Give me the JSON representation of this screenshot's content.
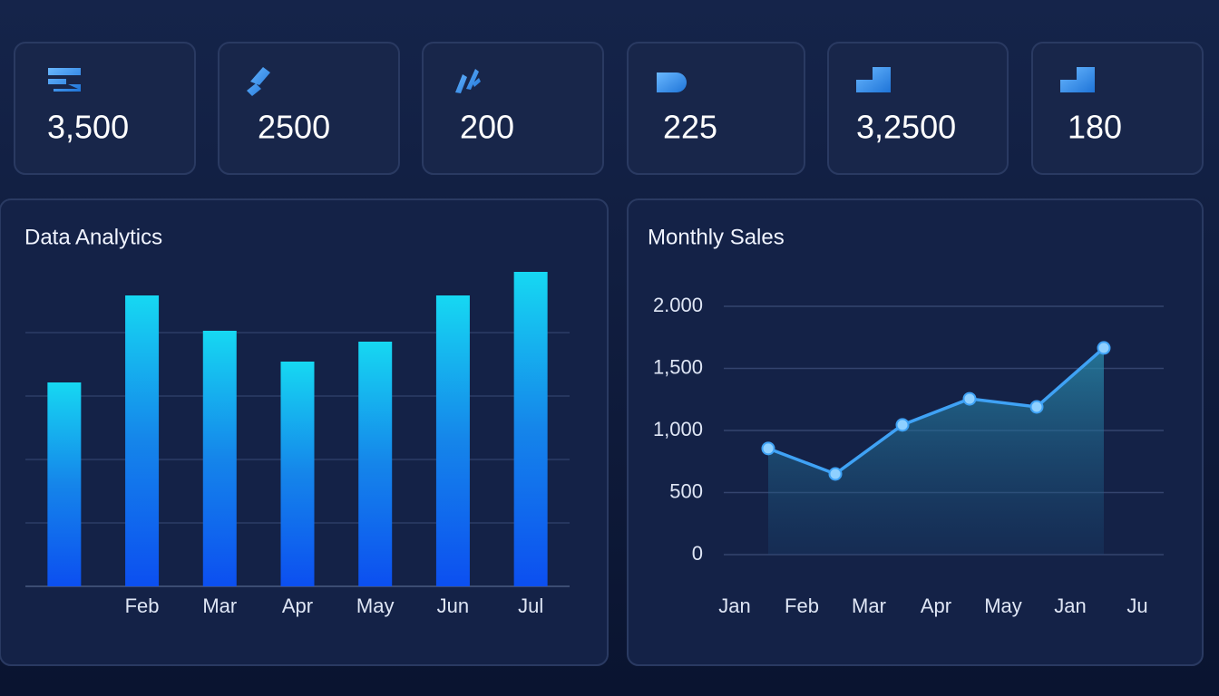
{
  "cards": [
    {
      "value": "3,500"
    },
    {
      "value": "2500"
    },
    {
      "value": "200"
    },
    {
      "value": "225"
    },
    {
      "value": "3,2500"
    },
    {
      "value": "180"
    }
  ],
  "chart_data": [
    {
      "type": "bar",
      "title": "Data Analytics",
      "categories": [
        null,
        "Feb",
        "Mar",
        "Apr",
        "May",
        "Jun",
        "Jul"
      ],
      "values": [
        225,
        321,
        282,
        248,
        270,
        321,
        347
      ],
      "color": "#0f5cf0",
      "ylim": [
        0,
        350
      ],
      "yticks": [
        0,
        70,
        140,
        210,
        280
      ],
      "grid": true
    },
    {
      "type": "line",
      "title": "Monthly Sales",
      "categories": [
        "Jan",
        "Feb",
        "Mar",
        "Apr",
        "May",
        "Jan",
        "Ju"
      ],
      "values": [
        855,
        650,
        1045,
        1255,
        1190,
        1665,
        null
      ],
      "color": "#3fa2f5",
      "ylim": [
        0,
        2000
      ],
      "yticks": [
        0,
        500,
        {
          "value": 1000,
          "label": "1,000"
        },
        {
          "value": 1500,
          "label": "1,500"
        },
        {
          "value": 2000,
          "label": "2.000"
        }
      ],
      "grid": true
    }
  ]
}
